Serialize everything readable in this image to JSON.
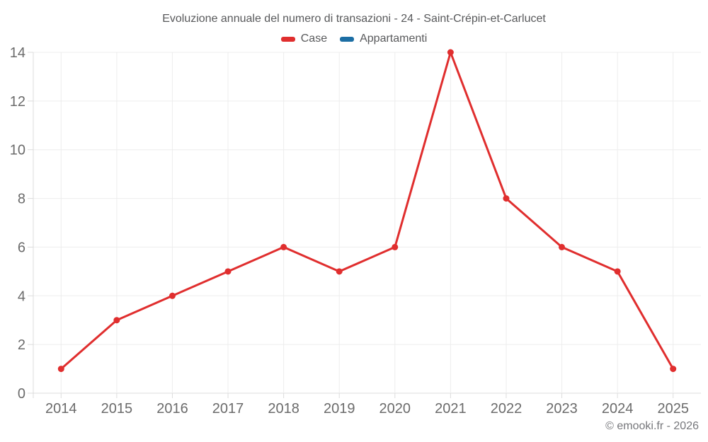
{
  "chart_data": {
    "type": "line",
    "title": "Evoluzione annuale del numero di transazioni - 24 - Saint-Crépin-et-Carlucet",
    "categories": [
      "2014",
      "2015",
      "2016",
      "2017",
      "2018",
      "2019",
      "2020",
      "2021",
      "2022",
      "2023",
      "2024",
      "2025"
    ],
    "series": [
      {
        "name": "Case",
        "color": "#e02e2e",
        "values": [
          1,
          3,
          4,
          5,
          6,
          5,
          6,
          14,
          8,
          6,
          5,
          1
        ]
      },
      {
        "name": "Appartamenti",
        "color": "#1c6ea4",
        "values": []
      }
    ],
    "xlabel": "",
    "ylabel": "",
    "ylim": [
      0,
      14
    ],
    "yticks": [
      0,
      2,
      4,
      6,
      8,
      10,
      12,
      14
    ],
    "grid": true,
    "legend_position": "top"
  },
  "footer": {
    "text": "© emooki.fr - 2026"
  }
}
